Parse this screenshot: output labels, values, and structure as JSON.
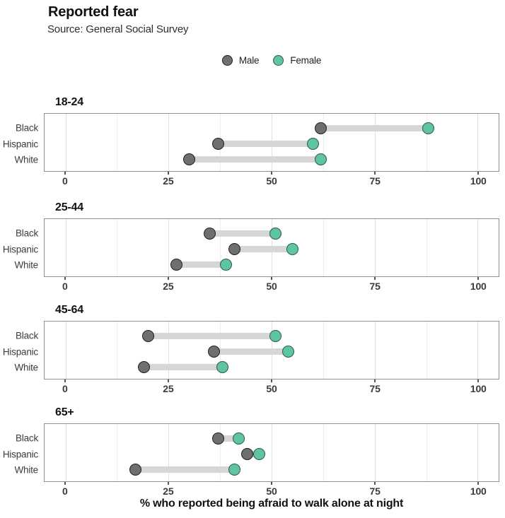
{
  "header": {
    "title": "Reported fear",
    "subtitle": "Source: General Social Survey"
  },
  "legend": {
    "items": [
      {
        "label": "Male",
        "key": "male"
      },
      {
        "label": "Female",
        "key": "female"
      }
    ]
  },
  "chart_data": {
    "type": "scatter",
    "variant": "dumbbell",
    "title": "Reported fear",
    "subtitle": "Source: General Social Survey",
    "xlabel": "% who reported being afraid to walk alone at night",
    "xlim": [
      0,
      100
    ],
    "x_ticks": [
      0,
      25,
      50,
      75,
      100
    ],
    "x_minor_ticks": [
      12.5,
      37.5,
      62.5,
      87.5
    ],
    "legend_position": "top-center",
    "grid": "vertical major and minor gridlines, white panel background, gray panel border",
    "categories": [
      "Black",
      "Hispanic",
      "White"
    ],
    "series_names": [
      "Male",
      "Female"
    ],
    "facets": [
      {
        "label": "18-24",
        "rows": [
          {
            "category": "Black",
            "male": 62,
            "female": 88
          },
          {
            "category": "Hispanic",
            "male": 37,
            "female": 60
          },
          {
            "category": "White",
            "male": 30,
            "female": 62
          }
        ]
      },
      {
        "label": "25-44",
        "rows": [
          {
            "category": "Black",
            "male": 35,
            "female": 51
          },
          {
            "category": "Hispanic",
            "male": 41,
            "female": 55
          },
          {
            "category": "White",
            "male": 27,
            "female": 39
          }
        ]
      },
      {
        "label": "45-64",
        "rows": [
          {
            "category": "Black",
            "male": 20,
            "female": 51
          },
          {
            "category": "Hispanic",
            "male": 36,
            "female": 54
          },
          {
            "category": "White",
            "male": 19,
            "female": 38
          }
        ]
      },
      {
        "label": "65+",
        "rows": [
          {
            "category": "Black",
            "male": 37,
            "female": 42
          },
          {
            "category": "Hispanic",
            "male": 44,
            "female": 47
          },
          {
            "category": "White",
            "male": 17,
            "female": 41
          }
        ]
      }
    ]
  },
  "colors": {
    "male_fill": "#6f6f6f",
    "male_stroke": "#1f1f1f",
    "female_fill": "#5ec4a1",
    "female_stroke": "#2e584b",
    "connector": "#d6d6d6",
    "grid_major": "#e0e0e0",
    "grid_minor": "#eeeeee",
    "panel_border": "#8f8f8f",
    "axis_tick": "#555555",
    "tick_label": "#3a3a3a"
  }
}
